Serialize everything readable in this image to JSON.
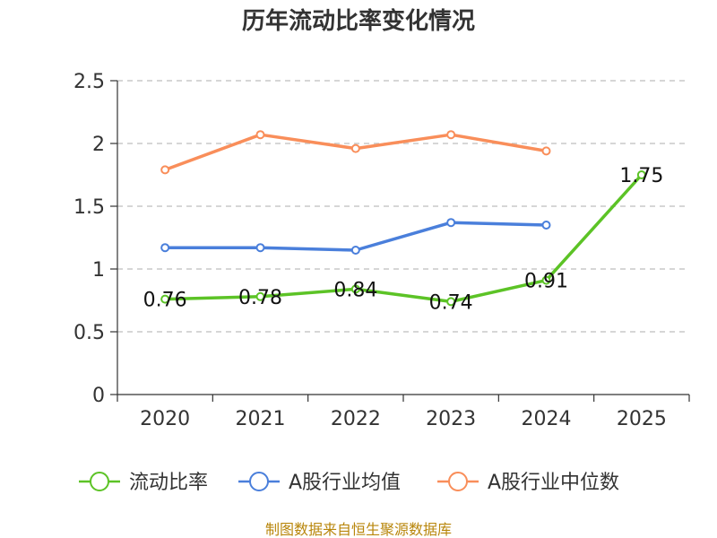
{
  "chart_data": {
    "type": "line",
    "title": "历年流动比率变化情况",
    "categories": [
      "2020",
      "2021",
      "2022",
      "2023",
      "2024",
      "2025"
    ],
    "ylim": [
      0,
      2.5
    ],
    "yticks": [
      "0",
      "0.5",
      "1",
      "1.5",
      "2",
      "2.5"
    ],
    "ytick_values": [
      0,
      0.5,
      1,
      1.5,
      2,
      2.5
    ],
    "grid": true,
    "legend_position": "bottom",
    "series": [
      {
        "name": "流动比率",
        "color": "#5cc326",
        "values": [
          0.76,
          0.78,
          0.84,
          0.74,
          0.91,
          1.75
        ],
        "labels": [
          "0.76",
          "0.78",
          "0.84",
          "0.74",
          "0.91",
          "1.75"
        ],
        "show_labels": true
      },
      {
        "name": "A股行业均值",
        "color": "#4a7fdb",
        "values": [
          1.17,
          1.17,
          1.15,
          1.37,
          1.35,
          null
        ],
        "show_labels": false
      },
      {
        "name": "A股行业中位数",
        "color": "#f98e5a",
        "values": [
          1.79,
          2.07,
          1.96,
          2.07,
          1.94,
          null
        ],
        "show_labels": false
      }
    ],
    "source": "制图数据来自恒生聚源数据库"
  }
}
